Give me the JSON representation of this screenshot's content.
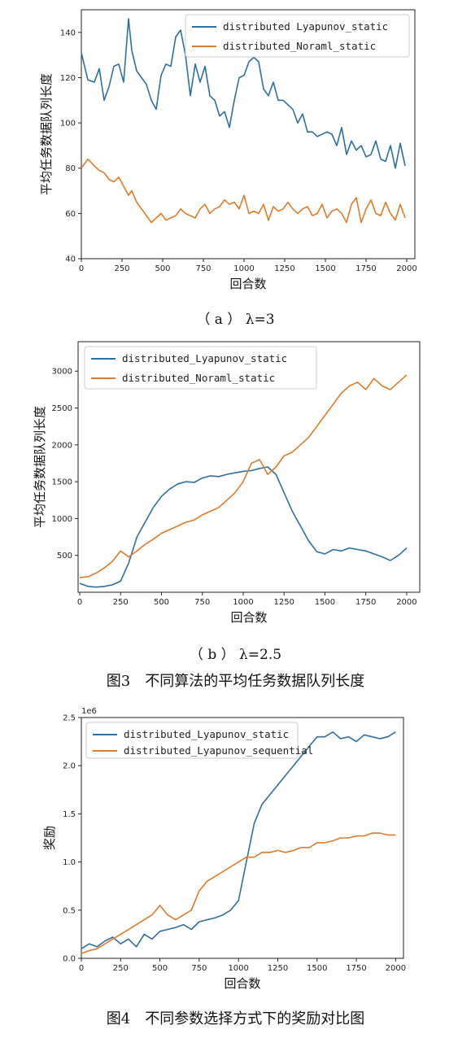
{
  "colors": {
    "series_1": "#2d6f9f",
    "series_2": "#e07b2a"
  },
  "chart_data": [
    {
      "type": "line",
      "xlabel": "回合数",
      "ylabel": "平均任务数据队列长度",
      "xlim": [
        0,
        2050
      ],
      "ylim": [
        40,
        150
      ],
      "xticks": [
        0,
        250,
        500,
        750,
        1000,
        1250,
        1500,
        1750,
        2000
      ],
      "yticks": [
        40,
        60,
        80,
        100,
        120,
        140
      ],
      "tick_labels_y": [
        "40",
        "60",
        "80",
        "100",
        "120",
        "140"
      ],
      "legend_position": "top-right",
      "series": [
        {
          "name": "distributed Lyapunov_static",
          "color": "#2d6f9f",
          "x": [
            0,
            40,
            80,
            110,
            140,
            170,
            200,
            230,
            260,
            290,
            310,
            340,
            370,
            400,
            430,
            460,
            490,
            520,
            550,
            580,
            610,
            640,
            670,
            700,
            730,
            760,
            790,
            820,
            850,
            880,
            910,
            940,
            970,
            1000,
            1030,
            1060,
            1090,
            1120,
            1150,
            1180,
            1210,
            1240,
            1270,
            1300,
            1330,
            1360,
            1390,
            1420,
            1450,
            1480,
            1510,
            1540,
            1570,
            1600,
            1630,
            1660,
            1690,
            1720,
            1750,
            1780,
            1810,
            1840,
            1870,
            1900,
            1930,
            1960,
            1990
          ],
          "values": [
            131,
            119,
            118,
            124,
            110,
            116,
            125,
            126,
            118,
            146,
            132,
            123,
            120,
            117,
            110,
            106,
            121,
            126,
            125,
            138,
            141,
            130,
            112,
            126,
            118,
            125,
            112,
            110,
            103,
            105,
            98,
            110,
            120,
            121,
            127,
            129,
            127,
            115,
            112,
            118,
            110,
            110,
            108,
            106,
            100,
            104,
            96,
            96,
            94,
            95,
            96,
            95,
            90,
            98,
            86,
            92,
            88,
            90,
            85,
            86,
            92,
            84,
            83,
            90,
            80,
            91,
            81
          ]
        },
        {
          "name": "distributed_Noraml_static",
          "color": "#e07b2a",
          "x": [
            0,
            40,
            80,
            110,
            140,
            170,
            200,
            230,
            260,
            290,
            310,
            340,
            370,
            400,
            430,
            460,
            490,
            520,
            550,
            580,
            610,
            640,
            670,
            700,
            730,
            760,
            790,
            820,
            850,
            880,
            910,
            940,
            970,
            1000,
            1030,
            1060,
            1090,
            1120,
            1150,
            1180,
            1210,
            1240,
            1270,
            1300,
            1330,
            1360,
            1390,
            1420,
            1450,
            1480,
            1510,
            1540,
            1570,
            1600,
            1630,
            1660,
            1690,
            1720,
            1750,
            1780,
            1810,
            1840,
            1870,
            1900,
            1930,
            1960,
            1990
          ],
          "values": [
            80,
            84,
            81,
            79,
            78,
            75,
            74,
            76,
            72,
            68,
            70,
            65,
            62,
            59,
            56,
            58,
            60,
            57,
            58,
            59,
            62,
            60,
            59,
            58,
            62,
            64,
            60,
            62,
            63,
            66,
            64,
            65,
            62,
            68,
            60,
            61,
            60,
            64,
            57,
            63,
            61,
            62,
            65,
            62,
            60,
            62,
            63,
            59,
            60,
            64,
            58,
            61,
            62,
            60,
            56,
            64,
            67,
            56,
            62,
            66,
            60,
            59,
            65,
            60,
            57,
            64,
            58
          ]
        }
      ]
    },
    {
      "type": "line",
      "xlabel": "回合数",
      "ylabel": "平均任务数据队列长度",
      "xlim": [
        -10,
        2080
      ],
      "ylim": [
        0,
        3400
      ],
      "xticks": [
        0,
        250,
        500,
        750,
        1000,
        1250,
        1500,
        1750,
        2000
      ],
      "yticks": [
        500,
        1000,
        1500,
        2000,
        2500,
        3000
      ],
      "tick_labels_y": [
        "500",
        "1000",
        "1500",
        "2000",
        "2500",
        "3000"
      ],
      "legend_position": "top-left",
      "series": [
        {
          "name": "distributed_Lyapunov_static",
          "color": "#2d6f9f",
          "x": [
            0,
            50,
            100,
            150,
            200,
            250,
            300,
            350,
            400,
            450,
            500,
            550,
            600,
            650,
            700,
            750,
            800,
            850,
            900,
            950,
            1000,
            1050,
            1100,
            1150,
            1200,
            1250,
            1300,
            1350,
            1400,
            1450,
            1500,
            1550,
            1600,
            1650,
            1700,
            1750,
            1800,
            1850,
            1900,
            1950,
            2000
          ],
          "values": [
            120,
            80,
            70,
            80,
            100,
            150,
            400,
            750,
            950,
            1150,
            1300,
            1400,
            1470,
            1500,
            1490,
            1550,
            1580,
            1570,
            1600,
            1620,
            1640,
            1650,
            1680,
            1700,
            1600,
            1350,
            1100,
            900,
            700,
            550,
            520,
            580,
            560,
            600,
            580,
            560,
            520,
            480,
            430,
            500,
            600
          ]
        },
        {
          "name": "distributed_Noraml_static",
          "color": "#e07b2a",
          "x": [
            0,
            50,
            100,
            150,
            200,
            250,
            300,
            350,
            400,
            450,
            500,
            550,
            600,
            650,
            700,
            750,
            800,
            850,
            900,
            950,
            1000,
            1050,
            1100,
            1150,
            1200,
            1250,
            1300,
            1350,
            1400,
            1450,
            1500,
            1550,
            1600,
            1650,
            1700,
            1750,
            1800,
            1850,
            1900,
            1950,
            2000
          ],
          "values": [
            200,
            210,
            260,
            330,
            420,
            560,
            480,
            560,
            650,
            720,
            800,
            850,
            900,
            950,
            980,
            1050,
            1100,
            1150,
            1250,
            1350,
            1500,
            1750,
            1800,
            1600,
            1700,
            1850,
            1900,
            2000,
            2100,
            2250,
            2400,
            2550,
            2700,
            2800,
            2850,
            2750,
            2900,
            2800,
            2750,
            2850,
            2950
          ]
        }
      ]
    },
    {
      "type": "line",
      "xlabel": "回合数",
      "ylabel": "奖励",
      "offset_label": "1e6",
      "xlim": [
        0,
        2050
      ],
      "ylim": [
        0,
        2.5
      ],
      "xticks": [
        0,
        250,
        500,
        750,
        1000,
        1250,
        1500,
        1750,
        2000
      ],
      "yticks": [
        0.0,
        0.5,
        1.0,
        1.5,
        2.0,
        2.5
      ],
      "tick_labels_y": [
        "0.0",
        "0.5",
        "1.0",
        "1.5",
        "2.0",
        "2.5"
      ],
      "legend_position": "top-left",
      "series": [
        {
          "name": "distributed_Lyapunov_static",
          "color": "#2d6f9f",
          "x": [
            0,
            50,
            100,
            150,
            200,
            250,
            300,
            350,
            400,
            450,
            500,
            550,
            600,
            650,
            700,
            750,
            800,
            850,
            900,
            950,
            1000,
            1050,
            1100,
            1150,
            1200,
            1250,
            1300,
            1350,
            1400,
            1450,
            1500,
            1550,
            1600,
            1650,
            1700,
            1750,
            1800,
            1850,
            1900,
            1950,
            2000
          ],
          "values": [
            0.1,
            0.15,
            0.12,
            0.18,
            0.22,
            0.15,
            0.2,
            0.12,
            0.25,
            0.2,
            0.28,
            0.3,
            0.32,
            0.35,
            0.3,
            0.38,
            0.4,
            0.42,
            0.45,
            0.5,
            0.6,
            1.0,
            1.4,
            1.6,
            1.7,
            1.8,
            1.9,
            2.0,
            2.1,
            2.2,
            2.3,
            2.3,
            2.35,
            2.28,
            2.3,
            2.25,
            2.32,
            2.3,
            2.28,
            2.3,
            2.35
          ]
        },
        {
          "name": "distributed_Lyapunov_sequential",
          "color": "#e07b2a",
          "x": [
            0,
            50,
            100,
            150,
            200,
            250,
            300,
            350,
            400,
            450,
            500,
            550,
            600,
            650,
            700,
            750,
            800,
            850,
            900,
            950,
            1000,
            1050,
            1100,
            1150,
            1200,
            1250,
            1300,
            1350,
            1400,
            1450,
            1500,
            1550,
            1600,
            1650,
            1700,
            1750,
            1800,
            1850,
            1900,
            1950,
            2000
          ],
          "values": [
            0.05,
            0.08,
            0.1,
            0.15,
            0.2,
            0.25,
            0.3,
            0.35,
            0.4,
            0.45,
            0.55,
            0.45,
            0.4,
            0.45,
            0.5,
            0.7,
            0.8,
            0.85,
            0.9,
            0.95,
            1.0,
            1.05,
            1.05,
            1.1,
            1.1,
            1.12,
            1.1,
            1.12,
            1.15,
            1.15,
            1.2,
            1.2,
            1.22,
            1.25,
            1.25,
            1.27,
            1.27,
            1.3,
            1.3,
            1.28,
            1.28
          ]
        }
      ]
    }
  ],
  "captions": {
    "sub_a": "（ a ） λ=3",
    "sub_b": "（ b ） λ=2.5",
    "fig3": "图3　不同算法的平均任务数据队列长度",
    "fig4": "图4　不同参数选择方式下的奖励对比图"
  }
}
